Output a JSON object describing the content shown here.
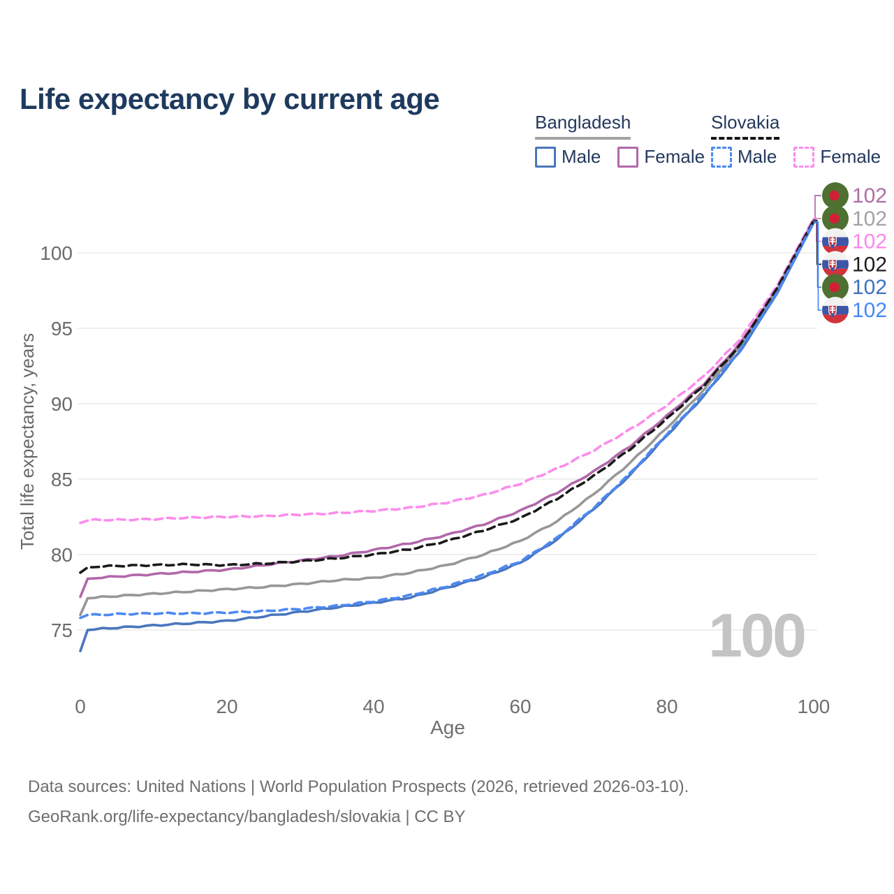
{
  "title": "Life expectancy by current age",
  "legend": {
    "groups": [
      {
        "country": "Bangladesh",
        "line_style": "solid",
        "underline_color": "#a3a3a3",
        "entries": [
          {
            "label": "Male",
            "color": "#4a76bd",
            "dashed": false
          },
          {
            "label": "Female",
            "color": "#b168aa",
            "dashed": false
          }
        ]
      },
      {
        "country": "Slovakia",
        "line_style": "dashed",
        "underline_color": "#141414",
        "entries": [
          {
            "label": "Male",
            "color": "#4b89f4",
            "dashed": true
          },
          {
            "label": "Female",
            "color": "#fc8cec",
            "dashed": true
          }
        ]
      }
    ]
  },
  "chart_data": {
    "type": "line",
    "title": "Life expectancy by current age",
    "xlabel": "Age",
    "ylabel": "Total life expectancy, years",
    "xlim": [
      0,
      100
    ],
    "ylim": [
      73,
      103
    ],
    "xticks": [
      0,
      20,
      40,
      60,
      80,
      100
    ],
    "yticks": [
      75,
      80,
      85,
      90,
      95,
      100
    ],
    "grid": true,
    "legend_position": "top-right",
    "x": [
      0,
      1,
      2,
      5,
      10,
      15,
      20,
      25,
      30,
      35,
      40,
      45,
      50,
      55,
      60,
      65,
      70,
      75,
      80,
      85,
      90,
      95,
      100
    ],
    "series": [
      {
        "name": "Bangladesh Female",
        "country": "Bangladesh",
        "sex": "Female",
        "color": "#b168aa",
        "dash": "solid",
        "values": [
          77.2,
          78.4,
          78.45,
          78.55,
          78.7,
          78.85,
          79.0,
          79.3,
          79.6,
          79.9,
          80.3,
          80.75,
          81.3,
          82.0,
          82.9,
          84.1,
          85.5,
          87.2,
          89.2,
          91.3,
          94.0,
          97.6,
          102.2
        ]
      },
      {
        "name": "Bangladesh Both sexes",
        "country": "Bangladesh",
        "sex": "Both sexes",
        "color": "#979797",
        "dash": "solid",
        "values": [
          76.0,
          77.1,
          77.15,
          77.25,
          77.4,
          77.55,
          77.7,
          77.85,
          78.05,
          78.3,
          78.45,
          78.8,
          79.3,
          80.0,
          80.9,
          82.2,
          84.0,
          86.1,
          88.4,
          90.9,
          93.8,
          97.5,
          102.1
        ]
      },
      {
        "name": "Slovakia Female",
        "country": "Slovakia",
        "sex": "Female",
        "color": "#fc8cec",
        "dash": "dashed",
        "values": [
          82.1,
          82.25,
          82.3,
          82.3,
          82.35,
          82.45,
          82.5,
          82.55,
          82.65,
          82.75,
          82.9,
          83.1,
          83.45,
          83.95,
          84.7,
          85.7,
          86.9,
          88.3,
          89.9,
          91.8,
          94.3,
          97.8,
          102.3
        ]
      },
      {
        "name": "Slovakia Both sexes",
        "country": "Slovakia",
        "sex": "Both sexes",
        "color": "#1a1a1a",
        "dash": "dashed",
        "values": [
          78.8,
          79.15,
          79.2,
          79.25,
          79.3,
          79.35,
          79.3,
          79.4,
          79.55,
          79.75,
          80.0,
          80.35,
          80.9,
          81.6,
          82.4,
          83.7,
          85.2,
          87.0,
          89.0,
          91.2,
          93.9,
          97.65,
          102.15
        ]
      },
      {
        "name": "Bangladesh Male",
        "country": "Bangladesh",
        "sex": "Male",
        "color": "#4a76bd",
        "dash": "solid",
        "values": [
          73.6,
          75.0,
          75.05,
          75.15,
          75.3,
          75.45,
          75.6,
          75.9,
          76.2,
          76.5,
          76.8,
          77.15,
          77.8,
          78.5,
          79.45,
          81.0,
          83.0,
          85.3,
          87.9,
          90.5,
          93.5,
          97.3,
          102.0
        ]
      },
      {
        "name": "Slovakia Male",
        "country": "Slovakia",
        "sex": "Male",
        "color": "#4b89f4",
        "dash": "dashed",
        "values": [
          75.8,
          76.0,
          76.0,
          76.05,
          76.1,
          76.1,
          76.15,
          76.25,
          76.4,
          76.6,
          76.9,
          77.3,
          77.9,
          78.65,
          79.55,
          81.1,
          83.1,
          85.4,
          88.0,
          90.6,
          93.6,
          97.35,
          102.05
        ]
      }
    ],
    "end_labels": [
      {
        "series": "Bangladesh Female",
        "flag": "bangladesh",
        "text": "102",
        "text_color": "#ad6da6"
      },
      {
        "series": "Bangladesh Both sexes",
        "flag": "bangladesh",
        "text": "102",
        "text_color": "#a2a2a2"
      },
      {
        "series": "Slovakia Female",
        "flag": "slovakia",
        "text": "102",
        "text_color": "#fb87ed"
      },
      {
        "series": "Slovakia Both sexes",
        "flag": "slovakia",
        "text": "102",
        "text_color": "#1c1c1c"
      },
      {
        "series": "Bangladesh Male",
        "flag": "bangladesh",
        "text": "102",
        "text_color": "#3e72c0"
      },
      {
        "series": "Slovakia Male",
        "flag": "slovakia",
        "text": "102",
        "text_color": "#4389f7"
      }
    ]
  },
  "age_indicator": "100",
  "footer": {
    "line1": "Data sources: United Nations | World Population Prospects (2026, retrieved 2026-03-10).",
    "line2": "GeoRank.org/life-expectancy/bangladesh/slovakia | CC BY"
  }
}
